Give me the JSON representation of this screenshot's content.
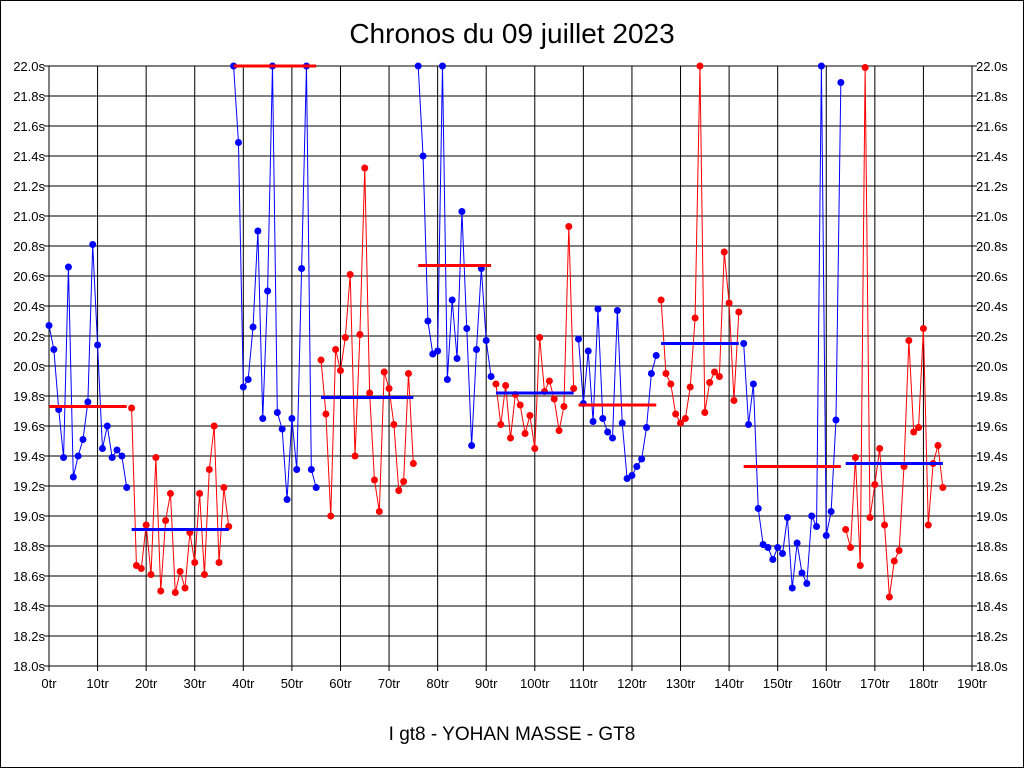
{
  "chart_data": {
    "type": "line",
    "title": "Chronos du 09 juillet 2023",
    "xlabel": "I gt8 - YOHAN MASSE - GT8",
    "ylabel": "",
    "xlim": [
      0,
      190
    ],
    "ylim": [
      18.0,
      22.0
    ],
    "grid": true,
    "x_ticks": [
      "0tr",
      "10tr",
      "20tr",
      "30tr",
      "40tr",
      "50tr",
      "60tr",
      "70tr",
      "80tr",
      "90tr",
      "100tr",
      "110tr",
      "120tr",
      "130tr",
      "140tr",
      "150tr",
      "160tr",
      "170tr",
      "180tr",
      "190tr"
    ],
    "y_ticks": [
      "18.0s",
      "18.2s",
      "18.4s",
      "18.6s",
      "18.8s",
      "19.0s",
      "19.2s",
      "19.4s",
      "19.6s",
      "19.8s",
      "20.0s",
      "20.2s",
      "20.4s",
      "20.6s",
      "20.8s",
      "21.0s",
      "21.2s",
      "21.4s",
      "21.6s",
      "21.8s",
      "22.0s"
    ],
    "colors": {
      "blue": "#0000ff",
      "red": "#ff0000"
    },
    "segments": [
      {
        "color": "blue",
        "avg_color": "red",
        "start": 0,
        "avg": 19.73,
        "values": [
          20.27,
          20.11,
          19.71,
          19.39,
          20.66,
          19.26,
          19.4,
          19.51,
          19.76,
          20.81,
          20.14,
          19.45,
          19.6,
          19.39,
          19.44,
          19.4,
          19.19
        ]
      },
      {
        "color": "red",
        "avg_color": "blue",
        "start": 17,
        "avg": 18.91,
        "values": [
          19.72,
          18.67,
          18.65,
          18.94,
          18.61,
          19.39,
          18.5,
          18.97,
          19.15,
          18.49,
          18.63,
          18.52,
          18.89,
          18.69,
          19.15,
          18.61,
          19.31,
          19.6,
          18.69,
          19.19,
          18.93
        ]
      },
      {
        "color": "blue",
        "avg_color": "red",
        "start": 38,
        "avg": 22.0,
        "values": [
          22.0,
          21.49,
          19.86,
          19.91,
          20.26,
          20.9,
          19.65,
          20.5,
          22.0,
          19.69,
          19.58,
          19.11,
          19.65,
          19.31,
          20.65,
          22.0,
          19.31,
          19.19
        ]
      },
      {
        "color": "red",
        "avg_color": "blue",
        "start": 56,
        "avg": 19.79,
        "values": [
          20.04,
          19.68,
          19.0,
          20.11,
          19.97,
          20.19,
          20.61,
          19.4,
          20.21,
          21.32,
          19.82,
          19.24,
          19.03,
          19.96,
          19.85,
          19.61,
          19.17,
          19.23,
          19.95,
          19.35
        ]
      },
      {
        "color": "blue",
        "avg_color": "red",
        "start": 76,
        "avg": 20.67,
        "values": [
          22.0,
          21.4,
          20.3,
          20.08,
          20.1,
          22.0,
          19.91,
          20.44,
          20.05,
          21.03,
          20.25,
          19.47,
          20.11,
          20.65,
          20.17,
          19.93
        ]
      },
      {
        "color": "red",
        "avg_color": "blue",
        "start": 92,
        "avg": 19.82,
        "values": [
          19.88,
          19.61,
          19.87,
          19.52,
          19.81,
          19.74,
          19.55,
          19.67,
          19.45,
          20.19,
          19.83,
          19.9,
          19.78,
          19.57,
          19.73,
          20.93,
          19.85
        ]
      },
      {
        "color": "blue",
        "avg_color": "red",
        "start": 109,
        "avg": 19.74,
        "values": [
          20.18,
          19.75,
          20.1,
          19.63,
          20.38,
          19.65,
          19.56,
          19.52,
          20.37,
          19.62,
          19.25,
          19.27,
          19.33,
          19.38,
          19.59,
          19.95,
          20.07
        ]
      },
      {
        "color": "red",
        "avg_color": "blue",
        "start": 126,
        "avg": 20.15,
        "values": [
          20.44,
          19.95,
          19.88,
          19.68,
          19.62,
          19.65,
          19.86,
          20.32,
          22.0,
          19.69,
          19.89,
          19.96,
          19.93,
          20.76,
          20.42,
          19.77,
          20.36
        ]
      },
      {
        "color": "blue",
        "avg_color": "red",
        "start": 143,
        "avg": 19.33,
        "values": [
          20.15,
          19.61,
          19.88,
          19.05,
          18.81,
          18.79,
          18.71,
          18.79,
          18.75,
          18.99,
          18.52,
          18.82,
          18.62,
          18.55,
          19.0,
          18.93,
          22.0,
          18.87,
          19.03,
          19.64,
          21.89
        ]
      },
      {
        "color": "red",
        "avg_color": "blue",
        "start": 164,
        "avg": 19.35,
        "values": [
          18.91,
          18.79,
          19.39,
          18.67,
          21.99,
          18.99,
          19.21,
          19.45,
          18.94,
          18.46,
          18.7,
          18.77,
          19.33,
          20.17,
          19.56,
          19.59,
          20.25,
          18.94,
          19.35,
          19.47,
          19.19
        ]
      }
    ]
  }
}
